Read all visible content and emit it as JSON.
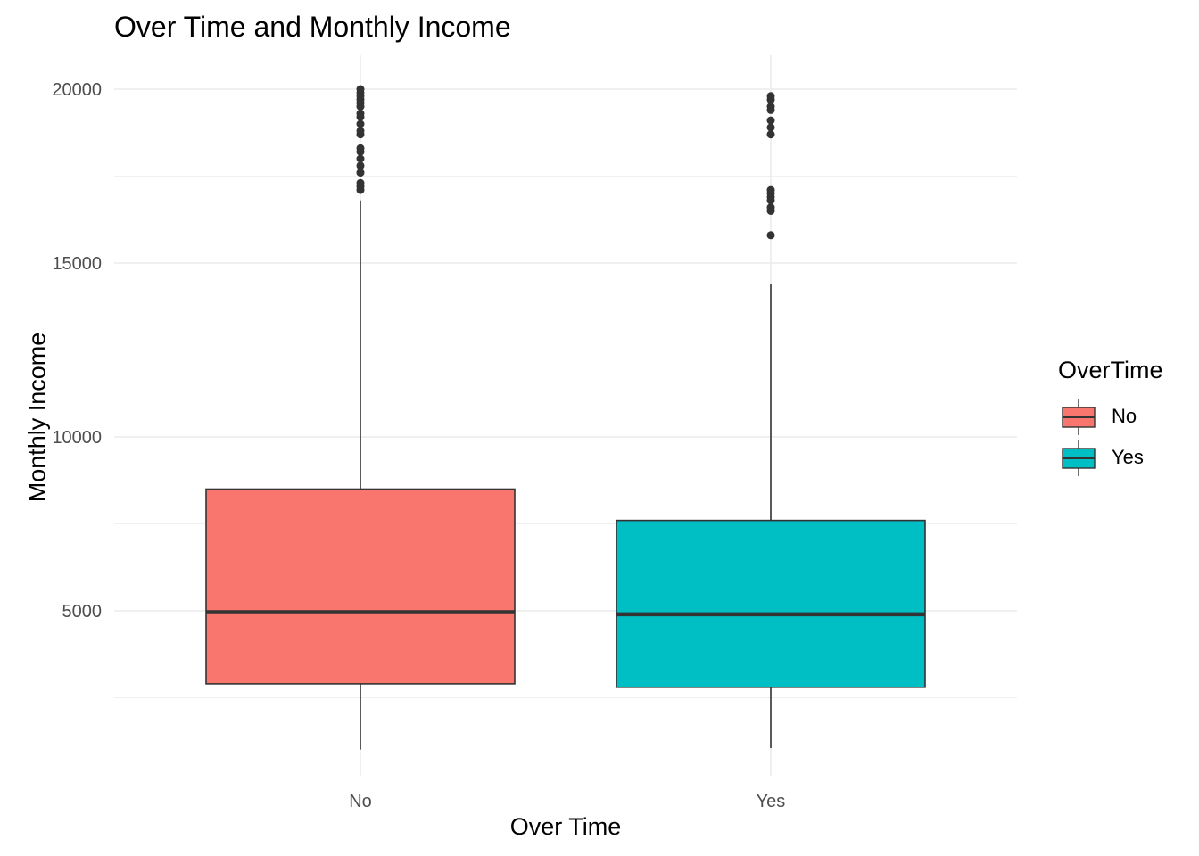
{
  "chart_data": {
    "type": "box",
    "title": "Over Time and Monthly Income",
    "xlabel": "Over Time",
    "ylabel": "Monthly Income",
    "ylim": [
      0,
      20900
    ],
    "yticks": [
      5000,
      10000,
      15000,
      20000
    ],
    "grid": true,
    "legend": {
      "title": "OverTime",
      "position": "right"
    },
    "categories": [
      "No",
      "Yes"
    ],
    "series": [
      {
        "name": "No",
        "color": "#F8766D",
        "min": 1009,
        "q1": 2900,
        "median": 4960,
        "q3": 8500,
        "upper_whisker": 16800,
        "outliers": [
          17100,
          17200,
          17300,
          17600,
          17800,
          18000,
          18200,
          18300,
          18700,
          18800,
          19000,
          19200,
          19300,
          19500,
          19600,
          19700,
          19800,
          19900,
          20000
        ]
      },
      {
        "name": "Yes",
        "color": "#00BFC4",
        "min": 1050,
        "q1": 2800,
        "median": 4900,
        "q3": 7600,
        "upper_whisker": 14400,
        "outliers": [
          15800,
          16500,
          16600,
          16800,
          16900,
          17000,
          17100,
          18700,
          18900,
          19100,
          19400,
          19500,
          19700,
          19800
        ]
      }
    ]
  }
}
